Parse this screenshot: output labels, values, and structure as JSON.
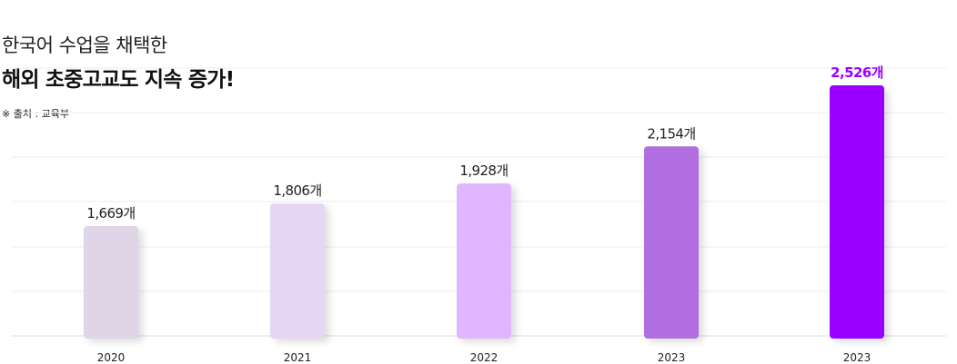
{
  "header": {
    "title_line1": "한국어 수업을 채택한",
    "title_line2": "해외 초중고교도 지속 증가!",
    "source": "※ 출처 : 교육부"
  },
  "chart_data": {
    "type": "bar",
    "categories": [
      "2020",
      "2021",
      "2022",
      "2023",
      "2023"
    ],
    "values": [
      1669,
      1806,
      1928,
      2154,
      2526
    ],
    "value_labels": [
      "1,669개",
      "1,806개",
      "1,928개",
      "2,154개",
      "2,526개"
    ],
    "bar_colors": [
      "#dfd5e6",
      "#e6d5f3",
      "#e0b7ff",
      "#b06ee0",
      "#9900ff"
    ],
    "label_colors": [
      "#222222",
      "#222222",
      "#222222",
      "#222222",
      "#9900ff"
    ],
    "ylim": [
      1000,
      2600
    ],
    "grid": true
  }
}
